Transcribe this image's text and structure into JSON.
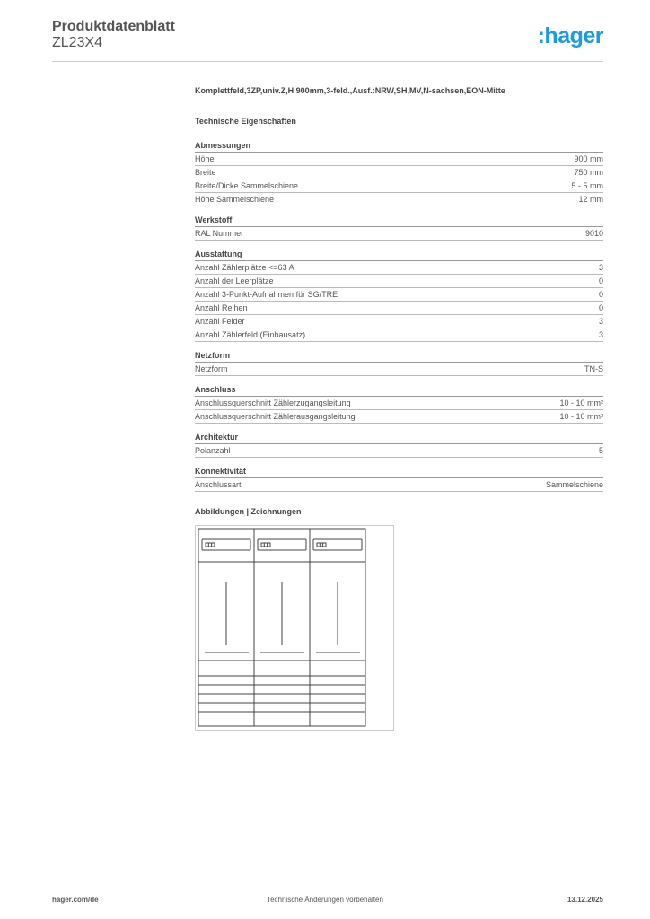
{
  "header": {
    "title": "Produktdatenblatt",
    "subtitle": "ZL23X4",
    "logo": ":hager",
    "logo_color": "#1c9ae3"
  },
  "product_description": "Komplettfeld,3ZP,univ.Z,H 900mm,3-feld.,Ausf.:NRW,SH,MV,N-sachsen,EON-Mitte",
  "technical_heading": "Technische Eigenschaften",
  "sections": [
    {
      "title": "Abmessungen",
      "rows": [
        {
          "label": "Höhe",
          "value": "900 mm"
        },
        {
          "label": "Breite",
          "value": "750 mm"
        },
        {
          "label": "Breite/Dicke Sammelschiene",
          "value": "5 - 5 mm"
        },
        {
          "label": "Höhe Sammelschiene",
          "value": "12 mm"
        }
      ]
    },
    {
      "title": "Werkstoff",
      "rows": [
        {
          "label": "RAL Nummer",
          "value": "9010"
        }
      ]
    },
    {
      "title": "Ausstattung",
      "rows": [
        {
          "label": "Anzahl Zählerplätze <=63 A",
          "value": "3"
        },
        {
          "label": "Anzahl der Leerplätze",
          "value": "0"
        },
        {
          "label": "Anzahl 3-Punkt-Aufnahmen für SG/TRE",
          "value": "0"
        },
        {
          "label": "Anzahl Reihen",
          "value": "0"
        },
        {
          "label": "Anzahl Felder",
          "value": "3"
        },
        {
          "label": "Anzahl Zählerfeld (Einbausatz)",
          "value": "3"
        }
      ]
    },
    {
      "title": "Netzform",
      "rows": [
        {
          "label": "Netzform",
          "value": "TN-S"
        }
      ]
    },
    {
      "title": "Anschluss",
      "rows": [
        {
          "label": "Anschlussquerschnitt Zählerzugangsleitung",
          "value": "10 - 10 mm²"
        },
        {
          "label": "Anschlussquerschnitt Zählerausgangsleitung",
          "value": "10 - 10 mm²"
        }
      ]
    },
    {
      "title": "Architektur",
      "rows": [
        {
          "label": "Polanzahl",
          "value": "5"
        }
      ]
    },
    {
      "title": "Konnektivität",
      "rows": [
        {
          "label": "Anschlussart",
          "value": "Sammelschiene"
        }
      ]
    }
  ],
  "drawings_heading": "Abbildungen | Zeichnungen",
  "footer": {
    "website": "hager.com/de",
    "notice": "Technische Änderungen vorbehalten",
    "date": "13.12.2025"
  }
}
